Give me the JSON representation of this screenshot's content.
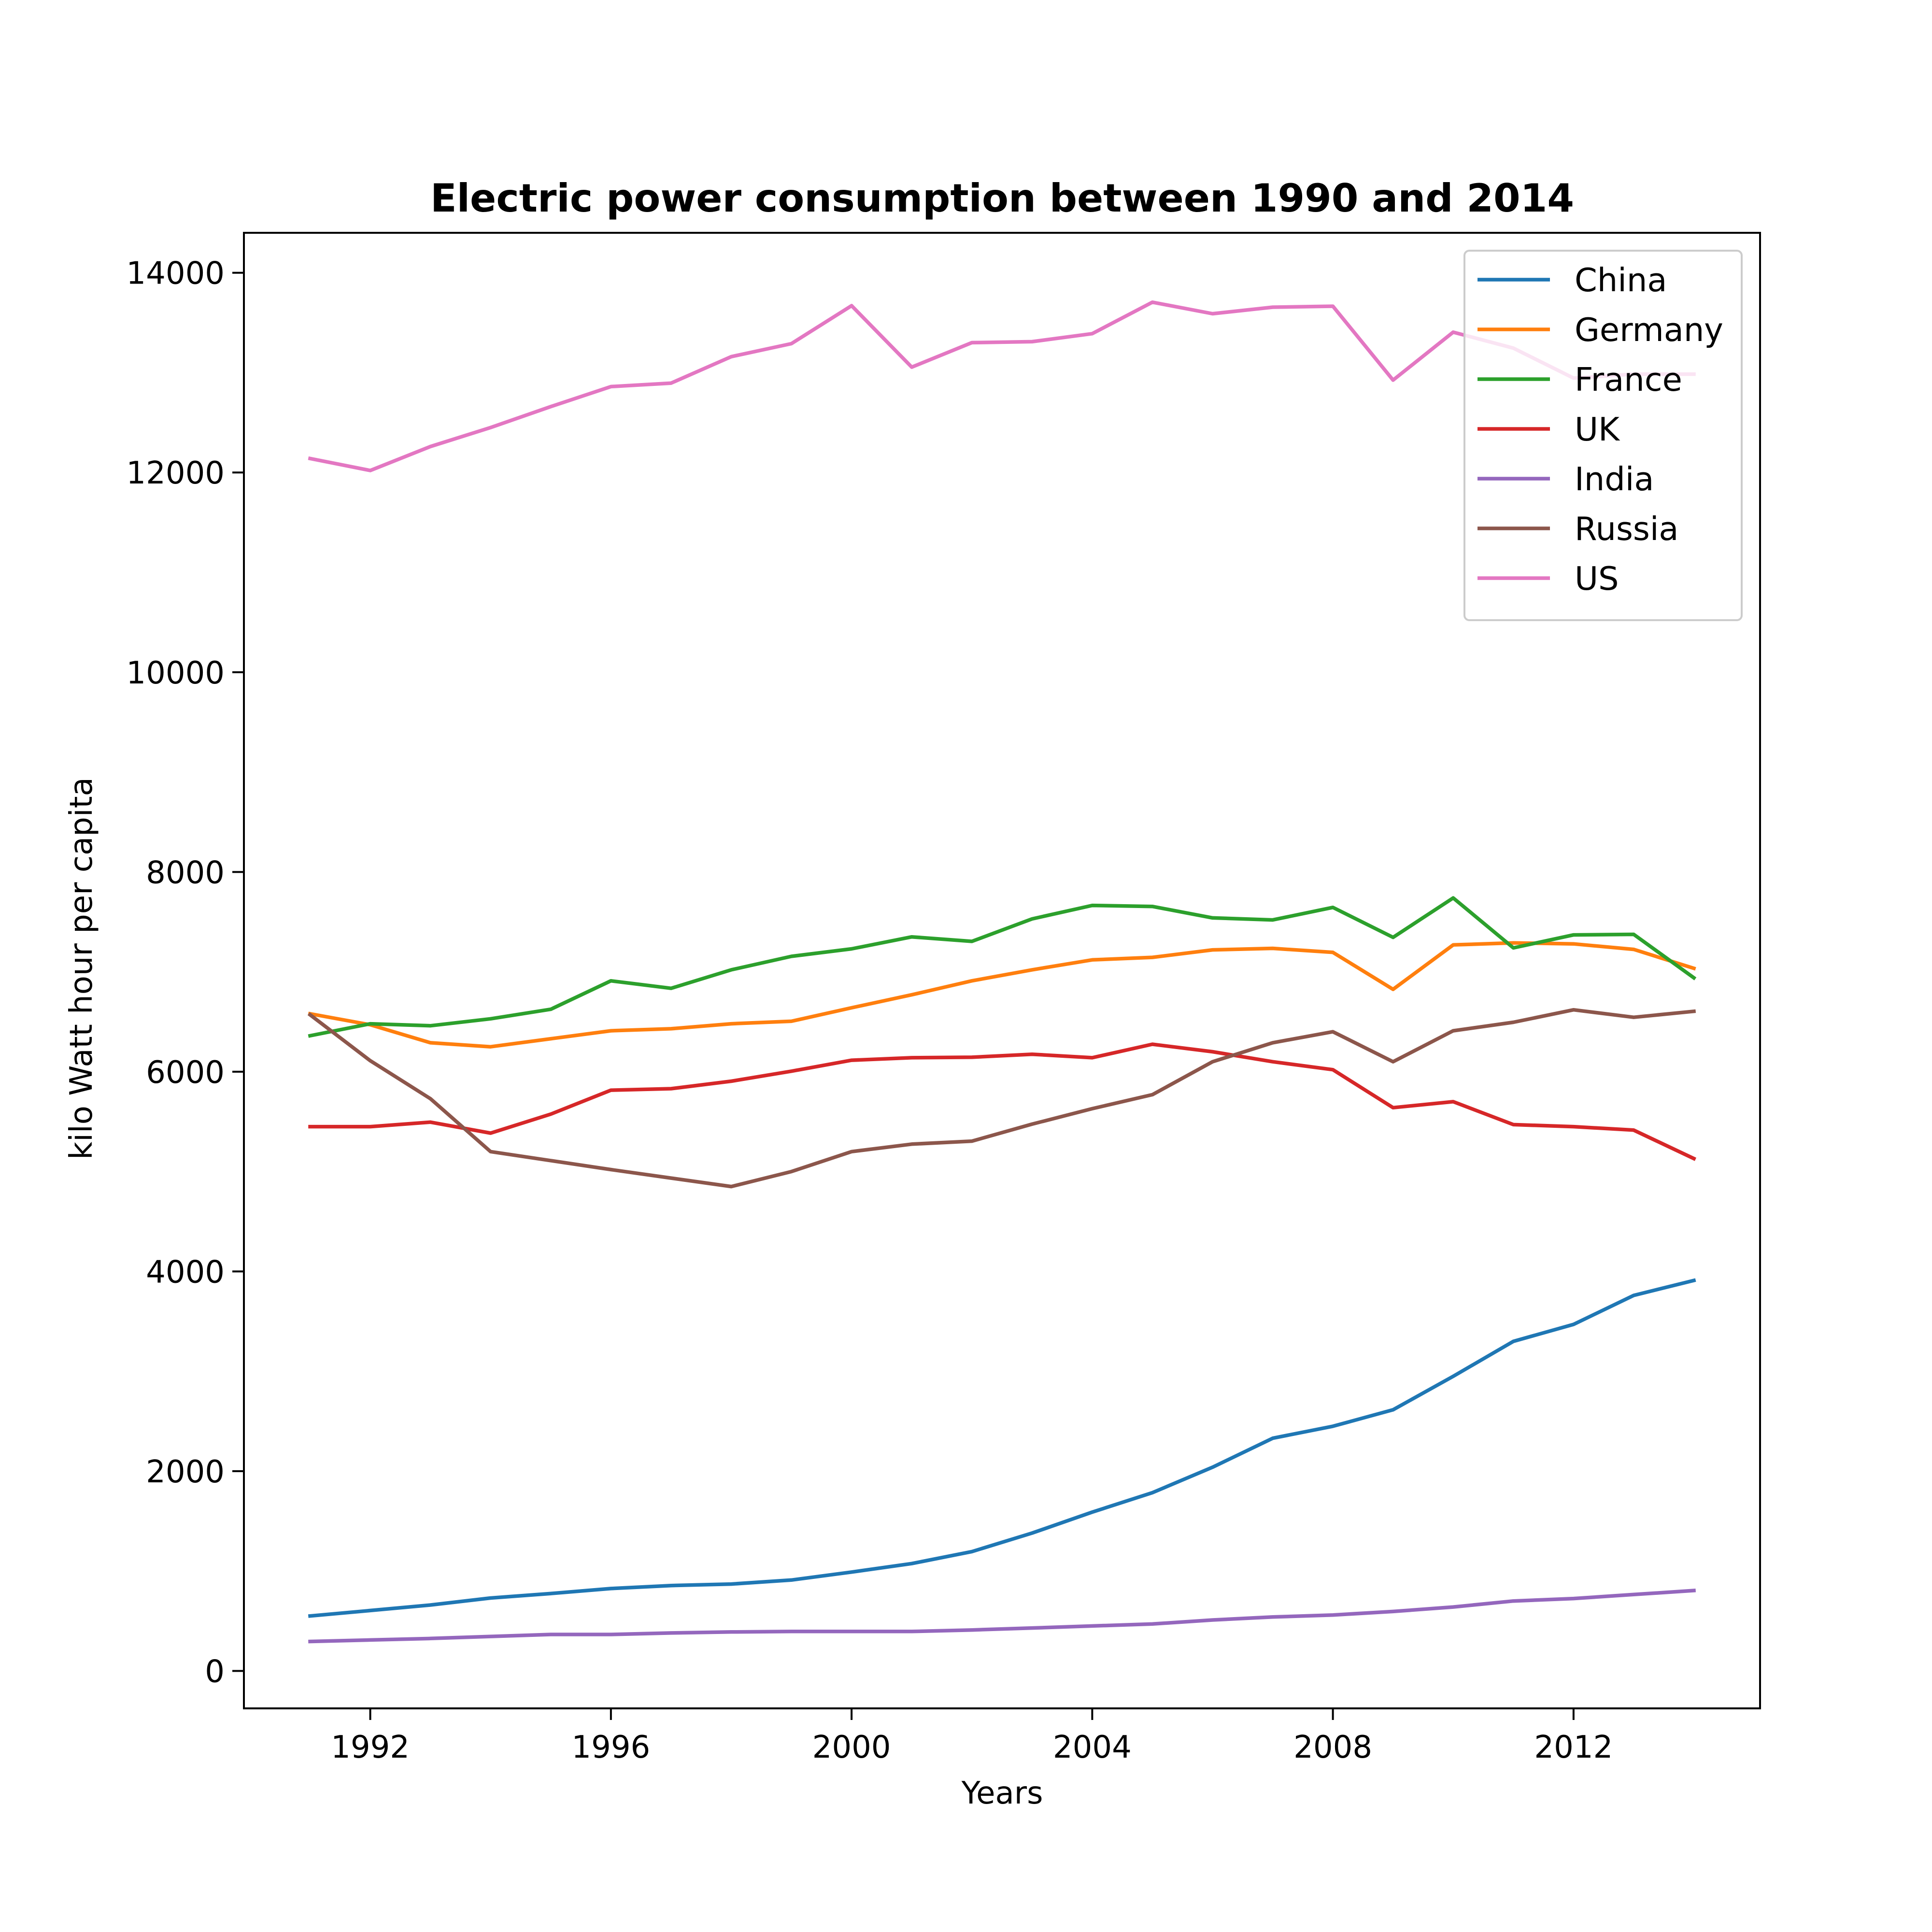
{
  "chart_data": {
    "type": "line",
    "title": "Electric power consumption between 1990 and 2014",
    "xlabel": "Years",
    "ylabel": "kilo Watt hour per capita",
    "xlim": [
      1989.9,
      2015.1
    ],
    "ylim": [
      -375,
      14400
    ],
    "x_ticks": [
      1992,
      1996,
      2000,
      2004,
      2008,
      2012
    ],
    "y_ticks": [
      0,
      2000,
      4000,
      6000,
      8000,
      10000,
      12000,
      14000
    ],
    "grid": false,
    "legend_position": "top-right",
    "x": [
      1991,
      1992,
      1993,
      1994,
      1995,
      1996,
      1997,
      1998,
      1999,
      2000,
      2001,
      2002,
      2003,
      2004,
      2005,
      2006,
      2007,
      2008,
      2009,
      2010,
      2011,
      2012,
      2013,
      2014
    ],
    "series": [
      {
        "name": "China",
        "color": "#1f77b4",
        "values": [
          550,
          605,
          660,
          730,
          775,
          825,
          855,
          870,
          910,
          990,
          1075,
          1195,
          1380,
          1590,
          1785,
          2040,
          2330,
          2450,
          2615,
          2950,
          3300,
          3470,
          3760,
          3910
        ]
      },
      {
        "name": "Germany",
        "color": "#ff7f0e",
        "values": [
          6580,
          6470,
          6290,
          6250,
          6330,
          6410,
          6430,
          6480,
          6505,
          6640,
          6770,
          6910,
          7020,
          7120,
          7145,
          7220,
          7235,
          7195,
          6825,
          7270,
          7290,
          7280,
          7225,
          7035
        ]
      },
      {
        "name": "France",
        "color": "#2ca02c",
        "values": [
          6360,
          6480,
          6460,
          6530,
          6625,
          6910,
          6835,
          7020,
          7155,
          7230,
          7350,
          7305,
          7530,
          7665,
          7655,
          7540,
          7520,
          7645,
          7345,
          7740,
          7240,
          7370,
          7375,
          6940
        ]
      },
      {
        "name": "UK",
        "color": "#d62728",
        "values": [
          5450,
          5450,
          5495,
          5385,
          5575,
          5815,
          5830,
          5905,
          6005,
          6115,
          6140,
          6145,
          6175,
          6140,
          6275,
          6200,
          6100,
          6020,
          5640,
          5700,
          5470,
          5450,
          5415,
          5130
        ]
      },
      {
        "name": "India",
        "color": "#9467bd",
        "values": [
          295,
          310,
          325,
          345,
          365,
          365,
          380,
          390,
          395,
          395,
          395,
          410,
          430,
          450,
          470,
          510,
          540,
          560,
          595,
          640,
          700,
          725,
          765,
          805
        ]
      },
      {
        "name": "Russia",
        "color": "#8c564b",
        "values": [
          6570,
          6110,
          5730,
          5200,
          5110,
          5020,
          4935,
          4850,
          5000,
          5200,
          5275,
          5305,
          5475,
          5630,
          5770,
          6100,
          6290,
          6400,
          6100,
          6410,
          6495,
          6620,
          6545,
          6605
        ]
      },
      {
        "name": "US",
        "color": "#e377c2",
        "values": [
          12140,
          12020,
          12260,
          12450,
          12660,
          12860,
          12895,
          13160,
          13290,
          13670,
          13055,
          13300,
          13310,
          13390,
          13705,
          13590,
          13655,
          13665,
          12925,
          13405,
          13245,
          12945,
          12985,
          12985
        ]
      }
    ]
  }
}
